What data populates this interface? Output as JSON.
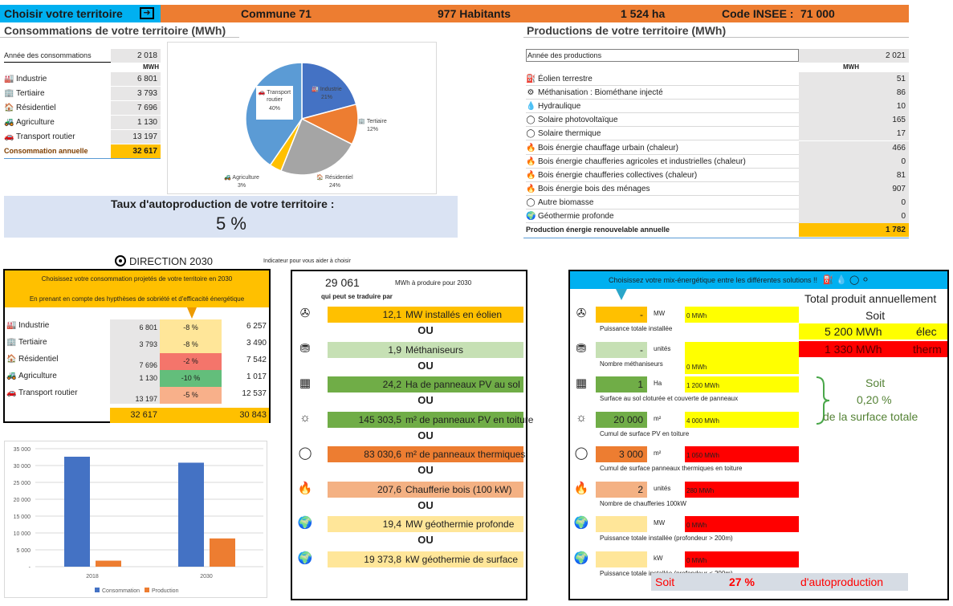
{
  "header": {
    "choose_label": "Choisir votre territoire",
    "commune": "Commune 71",
    "inhabitants": "977 Habitants",
    "area": "1 524 ha",
    "insee_label": "Code INSEE :",
    "insee_code": "71 000"
  },
  "consumption": {
    "title": "Consommations de votre territoire (MWh)",
    "year_label": "Année des consommations",
    "year": "2 018",
    "unit": "MWH",
    "rows": [
      {
        "label": "Industrie",
        "value": "6 801",
        "icon": "factory-icon"
      },
      {
        "label": "Tertiaire",
        "value": "3 793",
        "icon": "office-icon"
      },
      {
        "label": "Résidentiel",
        "value": "7 696",
        "icon": "house-icon"
      },
      {
        "label": "Agriculture",
        "value": "1 130",
        "icon": "tractor-icon"
      },
      {
        "label": "Transport routier",
        "value": "13 197",
        "icon": "car-icon"
      }
    ],
    "total_label": "Consommation annuelle",
    "total": "32 617"
  },
  "pie": {
    "slices": [
      {
        "name": "Industrie",
        "pct": "21%",
        "value": 6801,
        "color": "#4472c4"
      },
      {
        "name": "Tertiaire",
        "pct": "12%",
        "value": 3793,
        "color": "#ed7d31"
      },
      {
        "name": "Résidentiel",
        "pct": "24%",
        "value": 7696,
        "color": "#a5a5a5"
      },
      {
        "name": "Agriculture",
        "pct": "3%",
        "value": 1130,
        "color": "#ffc000"
      },
      {
        "name": "Transport routier",
        "pct": "40%",
        "value": 13197,
        "color": "#5b9bd5"
      }
    ]
  },
  "autoprod": {
    "label": "Taux d'autoproduction de votre territoire :",
    "value": "5 %"
  },
  "production": {
    "title": "Productions de votre territoire (MWh)",
    "year_label": "Année des productions",
    "year": "2 021",
    "unit": "MWH",
    "rows": [
      {
        "label": "Éolien terrestre",
        "value": "51"
      },
      {
        "label": "Méthanisation : Biométhane injecté",
        "value": "86"
      },
      {
        "label": "Hydraulique",
        "value": "10"
      },
      {
        "label": "Solaire photovoltaïque",
        "value": "165"
      },
      {
        "label": "Solaire thermique",
        "value": "17"
      },
      {
        "label": "Bois énergie chauffage urbain (chaleur)",
        "value": "466"
      },
      {
        "label": "Bois énergie chaufferies agricoles et industrielles (chaleur)",
        "value": "0"
      },
      {
        "label": "Bois énergie chaufferies collectives (chaleur)",
        "value": "81"
      },
      {
        "label": "Bois énergie bois des ménages",
        "value": "907"
      },
      {
        "label": "Autre biomasse",
        "value": "0"
      },
      {
        "label": "Géothermie profonde",
        "value": "0"
      }
    ],
    "total_label": "Production énergie renouvelable annuelle",
    "total": "1 782"
  },
  "direction": {
    "title": "DIRECTION 2030",
    "indicator_note": "Indicateur pour vous aider à choisir",
    "box_line1": "Choisissez votre consommation projetés de votre territoire en 2030",
    "box_line2": "En prenant en compte des hypthèses de sobriété et d'efficacité énergétique",
    "rows": [
      {
        "label": "Industrie",
        "base": "6 801",
        "pct": "-8 %",
        "proj": "6 257",
        "color": "#ffe699"
      },
      {
        "label": "Tertiaire",
        "base": "3 793",
        "pct": "-8 %",
        "proj": "3 490",
        "color": "#ffe699"
      },
      {
        "label": "Résidentiel",
        "base": "7 696",
        "pct": "-2 %",
        "proj": "7 542",
        "color": "#f4756b"
      },
      {
        "label": "Agriculture",
        "base": "1 130",
        "pct": "-10 %",
        "proj": "1 017",
        "color": "#63be7b"
      },
      {
        "label": "Transport routier",
        "base": "13 197",
        "pct": "-5 %",
        "proj": "12 537",
        "color": "#f8b08a"
      }
    ],
    "total_base": "32 617",
    "total_proj": "30 843"
  },
  "needs": {
    "value": "29 061",
    "unit_text": "MWh à produire pour 2030",
    "translate": "qui peut se traduire par",
    "ou": "OU",
    "items": [
      {
        "num": "12,1",
        "text": "MW installés en éolien",
        "color": "#ffc000",
        "icon": "wind-turbine-icon"
      },
      {
        "num": "1,9",
        "text": "Méthaniseurs",
        "color": "#c6e0b4",
        "icon": "methanizer-icon"
      },
      {
        "num": "24,2",
        "text": "Ha de panneaux PV au sol",
        "color": "#70ad47",
        "icon": "solar-panel-icon"
      },
      {
        "num": "145 303,5",
        "text": "m² de panneaux PV en toiture",
        "color": "#70ad47",
        "icon": "sun-icon"
      },
      {
        "num": "83 030,6",
        "text": "m² de panneaux thermiques",
        "color": "#ed7d31",
        "icon": "thermal-icon"
      },
      {
        "num": "207,6",
        "text": "Chaufferie bois (100 kW)",
        "color": "#f4b183",
        "icon": "flame-icon"
      },
      {
        "num": "19,4",
        "text": "MW géothermie profonde",
        "color": "#ffe699",
        "icon": "globe-icon"
      },
      {
        "num": "19 373,8",
        "text": "kW géothermie de surface",
        "color": "#ffe699",
        "icon": "globe-icon"
      }
    ]
  },
  "mix": {
    "header": "Choisissez votre mix-énergétique entre les différentes solutions  !!",
    "total_label": "Total produit annuellement",
    "soit": "Soit",
    "elec_value": "5 200 MWh",
    "elec_unit": "élec",
    "therm_value": "1 330 MWh",
    "therm_unit": "therm",
    "surface_soit": "Soit",
    "surface_pct": "0,20 %",
    "surface_label": "de la surface totale",
    "rows": [
      {
        "input": "-",
        "unit": "MW",
        "out": "0 MWh",
        "caption": "Puissance totale installée",
        "in_color": "#ffc000",
        "out_color": "#ffff00"
      },
      {
        "input": "-",
        "unit": "unités",
        "out": "0 MWh",
        "caption": "Nombre méthaniseurs",
        "in_color": "#c6e0b4",
        "out_color": "#ffff00"
      },
      {
        "input": "1",
        "unit": "Ha",
        "out": "1 200 MWh",
        "caption": "Surface au sol cloturée et couverte de panneaux",
        "in_color": "#70ad47",
        "out_color": "#ffff00"
      },
      {
        "input": "20 000",
        "unit": "m²",
        "out": "4 000 MWh",
        "caption": "Cumul de surface PV en toiture",
        "in_color": "#70ad47",
        "out_color": "#ffff00"
      },
      {
        "input": "3 000",
        "unit": "m²",
        "out": "1 050 MWh",
        "caption": "Cumul de surface panneaux thermiques en toiture",
        "in_color": "#ed7d31",
        "out_color": "#ff0000"
      },
      {
        "input": "2",
        "unit": "unités",
        "out": "280 MWh",
        "caption": "Nombre de chaufferies 100kW",
        "in_color": "#f4b183",
        "out_color": "#ff0000"
      },
      {
        "input": "",
        "unit": "MW",
        "out": "0 MWh",
        "caption": "Puissance totale installée (profondeur > 200m)",
        "in_color": "#ffe699",
        "out_color": "#ff0000"
      },
      {
        "input": "",
        "unit": "kW",
        "out": "0 MWh",
        "caption": "Puissance totale installée (profondeur < 200m)",
        "in_color": "#ffe699",
        "out_color": "#ff0000"
      }
    ],
    "footer_soit": "Soit",
    "footer_pct": "27 %",
    "footer_label": "d'autoproduction"
  },
  "chart_data": {
    "type": "bar",
    "categories": [
      "2018",
      "2030"
    ],
    "series": [
      {
        "name": "Consommation",
        "values": [
          32617,
          30843
        ],
        "color": "#4472c4"
      },
      {
        "name": "Production",
        "values": [
          1782,
          8380
        ],
        "color": "#ed7d31"
      }
    ],
    "ylim": [
      0,
      35000
    ],
    "yticks": [
      "35 000",
      "30 000",
      "25 000",
      "20 000",
      "15 000",
      "10 000",
      "5 000",
      "-"
    ],
    "legend": "bottom",
    "grid": true
  }
}
